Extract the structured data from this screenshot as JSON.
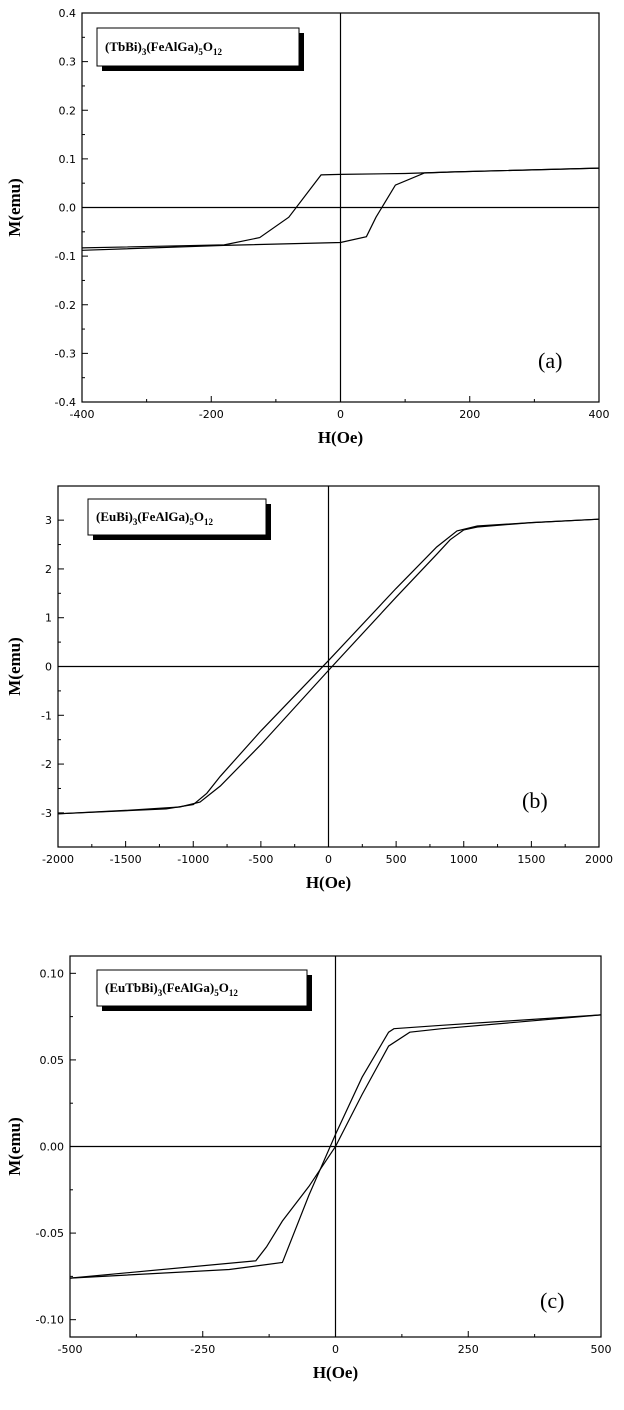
{
  "chart_data": [
    {
      "type": "line",
      "panel_label": "(a)",
      "legend": {
        "parts": [
          [
            "(TbBi)",
            ""
          ],
          [
            "3",
            "sub"
          ],
          [
            "(FeAlGa)",
            ""
          ],
          [
            "5",
            "sub"
          ],
          [
            "O",
            ""
          ],
          [
            "12",
            "sub"
          ]
        ]
      },
      "xlabel": "H(Oe)",
      "ylabel": "M(emu)",
      "xlim": [
        -400,
        400
      ],
      "ylim": [
        -0.4,
        0.4
      ],
      "xticks": [
        -400,
        -200,
        0,
        200,
        400
      ],
      "xtick_labels": [
        "-400",
        "-200",
        "0",
        "200",
        "400"
      ],
      "yticks": [
        -0.4,
        -0.3,
        -0.2,
        -0.1,
        0.0,
        0.1,
        0.2,
        0.3,
        0.4
      ],
      "ytick_labels": [
        "-0.4",
        "-0.3",
        "-0.2",
        "-0.1",
        "0.0",
        "0.1",
        "0.2",
        "0.3",
        "0.4"
      ],
      "series": [
        {
          "x": [
            -400,
            -180,
            -125,
            -80,
            -30,
            0,
            100,
            170,
            400
          ],
          "y": [
            -0.083,
            -0.077,
            -0.062,
            -0.02,
            0.067,
            0.068,
            0.07,
            0.073,
            0.081
          ]
        },
        {
          "x": [
            400,
            170,
            130,
            85,
            55,
            40,
            0,
            -180,
            -400
          ],
          "y": [
            0.081,
            0.073,
            0.071,
            0.046,
            -0.02,
            -0.06,
            -0.072,
            -0.078,
            -0.088
          ]
        }
      ]
    },
    {
      "type": "line",
      "panel_label": "(b)",
      "legend": {
        "parts": [
          [
            "(EuBi)",
            ""
          ],
          [
            "3",
            "sub"
          ],
          [
            "(FeAlGa)",
            ""
          ],
          [
            "5",
            "sub"
          ],
          [
            "O",
            ""
          ],
          [
            "12",
            "sub"
          ]
        ]
      },
      "xlabel": "H(Oe)",
      "ylabel": "M(emu)",
      "xlim": [
        -2000,
        2000
      ],
      "ylim": [
        -3.7,
        3.7
      ],
      "xticks": [
        -2000,
        -1500,
        -1000,
        -500,
        0,
        500,
        1000,
        1500,
        2000
      ],
      "xtick_labels": [
        "-2000",
        "-1500",
        "-1000",
        "-500",
        "0",
        "500",
        "1000",
        "1500",
        "2000"
      ],
      "yticks": [
        -3,
        -2,
        -1,
        0,
        1,
        2,
        3
      ],
      "ytick_labels": [
        "-3",
        "-2",
        "-1",
        "0",
        "1",
        "2",
        "3"
      ],
      "series": [
        {
          "x": [
            -2000,
            -1200,
            -1000,
            -900,
            -800,
            -500,
            0,
            500,
            800,
            950,
            1100,
            1500,
            2000
          ],
          "y": [
            -3.02,
            -2.92,
            -2.83,
            -2.6,
            -2.25,
            -1.32,
            0.12,
            1.6,
            2.45,
            2.78,
            2.88,
            2.95,
            3.02
          ]
        },
        {
          "x": [
            2000,
            1500,
            1100,
            1000,
            900,
            800,
            500,
            0,
            -500,
            -800,
            -950,
            -1100,
            -1500,
            -2000
          ],
          "y": [
            3.02,
            2.95,
            2.86,
            2.8,
            2.6,
            2.3,
            1.42,
            -0.08,
            -1.6,
            -2.45,
            -2.78,
            -2.88,
            -2.95,
            -3.02
          ]
        }
      ]
    },
    {
      "type": "line",
      "panel_label": "(c)",
      "legend": {
        "parts": [
          [
            "(EuTbBi)",
            ""
          ],
          [
            "3",
            "sub"
          ],
          [
            "(FeAlGa)",
            ""
          ],
          [
            "5",
            "sub"
          ],
          [
            "O",
            ""
          ],
          [
            "12",
            "sub"
          ]
        ]
      },
      "xlabel": "H(Oe)",
      "ylabel": "M(emu)",
      "xlim": [
        -500,
        500
      ],
      "ylim": [
        -0.11,
        0.11
      ],
      "xticks": [
        -500,
        -250,
        0,
        250,
        500
      ],
      "xtick_labels": [
        "-500",
        "-250",
        "0",
        "250",
        "500"
      ],
      "yticks": [
        -0.1,
        -0.05,
        0.0,
        0.05,
        0.1
      ],
      "ytick_labels": [
        "-0.10",
        "-0.05",
        "0.00",
        "0.05",
        "0.10"
      ],
      "series": [
        {
          "x": [
            -500,
            -150,
            -130,
            -100,
            -50,
            0,
            50,
            100,
            140,
            200,
            500
          ],
          "y": [
            -0.076,
            -0.066,
            -0.058,
            -0.043,
            -0.023,
            0.0,
            0.03,
            0.058,
            0.066,
            0.068,
            0.076
          ]
        },
        {
          "x": [
            500,
            200,
            110,
            100,
            50,
            0,
            -50,
            -100,
            -150,
            -200,
            -500
          ],
          "y": [
            0.076,
            0.07,
            0.068,
            0.066,
            0.04,
            0.007,
            -0.028,
            -0.067,
            -0.069,
            -0.071,
            -0.076
          ]
        }
      ]
    }
  ]
}
